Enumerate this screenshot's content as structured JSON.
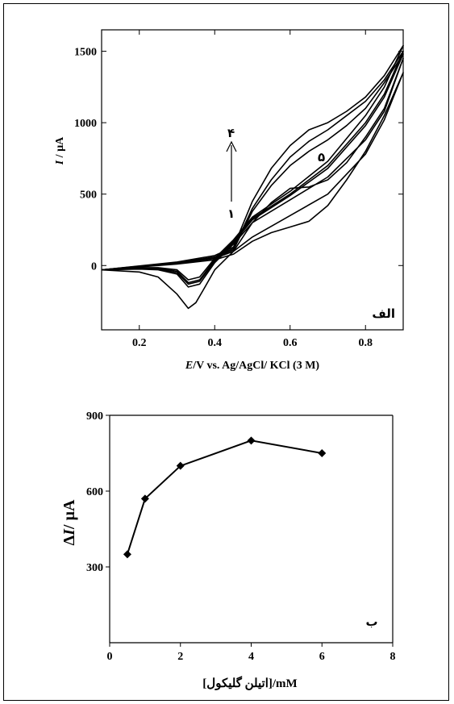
{
  "chart_data": [
    {
      "type": "line",
      "panel_label": "الف",
      "xlabel_italic": "E",
      "xlabel_rest": "/V vs. Ag/AgCl/ KCl (3 M)",
      "ylabel_italic": "I",
      "ylabel_rest": " / µA",
      "xlim": [
        0.1,
        0.9
      ],
      "ylim": [
        -450,
        1650
      ],
      "xticks": [
        "0.2",
        "0.4",
        "0.6",
        "0.8"
      ],
      "yticks": [
        "0",
        "500",
        "1000",
        "1500"
      ],
      "arrow_label_top": "۴",
      "arrow_label_bottom": "۱",
      "curve_label": "۵",
      "series": [
        {
          "x": [
            0.1,
            0.3,
            0.4,
            0.45,
            0.5,
            0.55,
            0.6,
            0.65,
            0.7,
            0.75,
            0.8,
            0.85,
            0.9,
            0.85,
            0.8,
            0.7,
            0.6,
            0.5,
            0.45,
            0.4,
            0.37,
            0.35,
            0.33,
            0.3,
            0.25,
            0.2,
            0.1
          ],
          "y": [
            -30,
            10,
            40,
            80,
            170,
            230,
            270,
            310,
            420,
            600,
            800,
            1050,
            1350,
            1020,
            780,
            500,
            350,
            200,
            100,
            -30,
            -170,
            -260,
            -300,
            -200,
            -80,
            -45,
            -30
          ]
        },
        {
          "x": [
            0.1,
            0.3,
            0.4,
            0.45,
            0.5,
            0.55,
            0.6,
            0.65,
            0.7,
            0.75,
            0.8,
            0.85,
            0.9,
            0.85,
            0.8,
            0.7,
            0.6,
            0.5,
            0.45,
            0.4,
            0.36,
            0.33,
            0.3,
            0.25,
            0.2,
            0.1
          ],
          "y": [
            -30,
            15,
            50,
            100,
            300,
            440,
            540,
            550,
            600,
            720,
            900,
            1100,
            1450,
            1080,
            880,
            620,
            460,
            300,
            150,
            20,
            -130,
            -150,
            -60,
            -30,
            -25,
            -30
          ]
        },
        {
          "x": [
            0.1,
            0.3,
            0.4,
            0.45,
            0.5,
            0.55,
            0.6,
            0.65,
            0.7,
            0.75,
            0.8,
            0.85,
            0.9,
            0.85,
            0.8,
            0.7,
            0.6,
            0.5,
            0.45,
            0.4,
            0.36,
            0.33,
            0.3,
            0.25,
            0.2,
            0.1
          ],
          "y": [
            -30,
            20,
            60,
            120,
            400,
            600,
            760,
            870,
            950,
            1050,
            1150,
            1300,
            1500,
            1200,
            1000,
            700,
            500,
            330,
            170,
            40,
            -100,
            -120,
            -40,
            -20,
            -20,
            -30
          ]
        },
        {
          "x": [
            0.1,
            0.3,
            0.4,
            0.45,
            0.5,
            0.55,
            0.6,
            0.65,
            0.7,
            0.75,
            0.8,
            0.85,
            0.9,
            0.85,
            0.8,
            0.7,
            0.6,
            0.5,
            0.45,
            0.4,
            0.36,
            0.33,
            0.3,
            0.25,
            0.2,
            0.1
          ],
          "y": [
            -30,
            25,
            70,
            130,
            450,
            680,
            840,
            950,
            1000,
            1080,
            1180,
            1330,
            1540,
            1250,
            1050,
            730,
            520,
            340,
            180,
            50,
            -80,
            -100,
            -30,
            -15,
            -15,
            -30
          ]
        },
        {
          "x": [
            0.1,
            0.3,
            0.4,
            0.45,
            0.5,
            0.55,
            0.6,
            0.65,
            0.7,
            0.75,
            0.8,
            0.85,
            0.9,
            0.85,
            0.8,
            0.7,
            0.6,
            0.5,
            0.45,
            0.4,
            0.36,
            0.33,
            0.3,
            0.25,
            0.2,
            0.1
          ],
          "y": [
            -30,
            20,
            55,
            110,
            380,
            560,
            700,
            800,
            880,
            980,
            1100,
            1280,
            1480,
            1180,
            980,
            680,
            490,
            320,
            160,
            30,
            -110,
            -130,
            -50,
            -25,
            -22,
            -30
          ]
        }
      ]
    },
    {
      "type": "line",
      "panel_label": "ب",
      "xlabel": "[اتیلن گلیکول]/mM",
      "ylabel_prefix": "Δ",
      "ylabel_italic": "I",
      "ylabel_rest": "/ µA",
      "xlim": [
        0,
        8
      ],
      "ylim": [
        0,
        900
      ],
      "xticks": [
        "0",
        "2",
        "4",
        "6",
        "8"
      ],
      "yticks": [
        "300",
        "600",
        "900"
      ],
      "x": [
        0.5,
        1,
        2,
        4,
        6
      ],
      "y": [
        350,
        570,
        700,
        800,
        750
      ]
    }
  ]
}
